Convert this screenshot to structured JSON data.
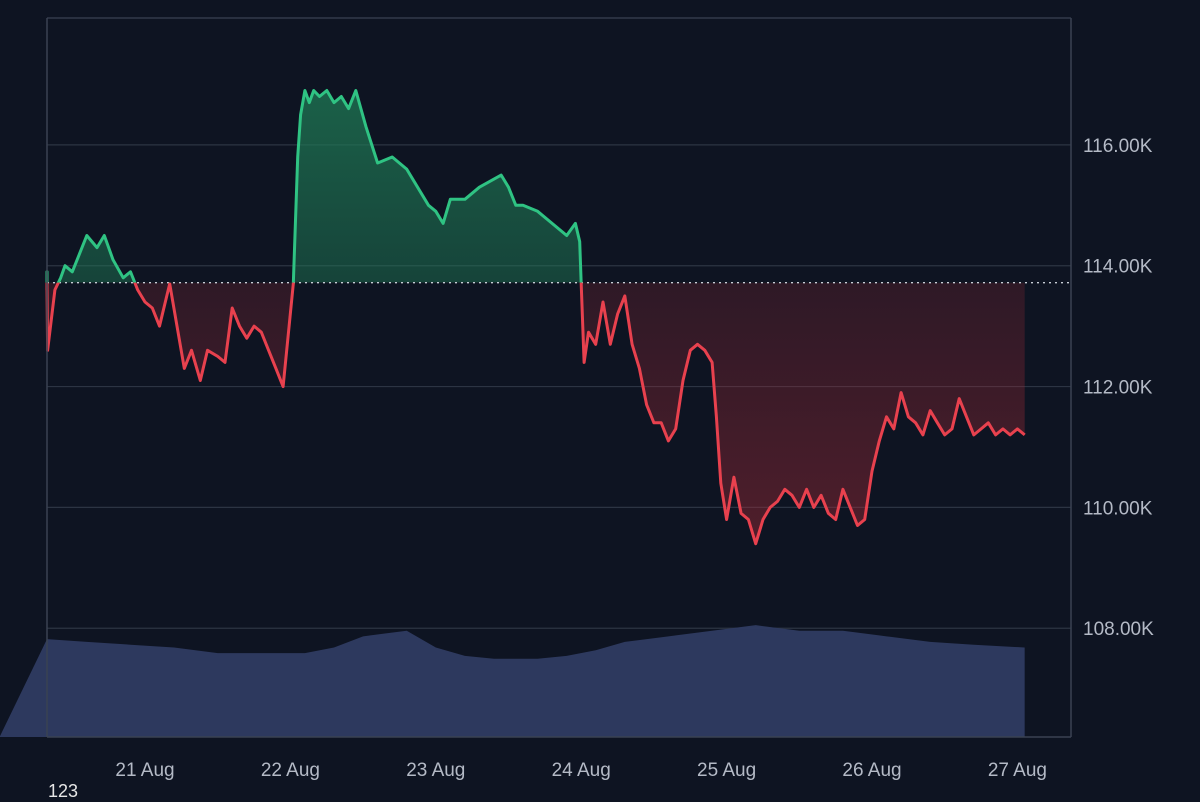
{
  "corner_label": "123",
  "colors": {
    "background": "#0e1422",
    "grid": "#2c3443",
    "axis": "#3a4252",
    "up": "#2fc383",
    "down": "#e8414e",
    "volume": "#2f3b62",
    "baseline": "#c8cdd6"
  },
  "chart_data": {
    "type": "area",
    "title": "",
    "xlabel": "",
    "ylabel": "",
    "x_ticks": [
      "21 Aug",
      "22 Aug",
      "23 Aug",
      "24 Aug",
      "25 Aug",
      "26 Aug",
      "27 Aug"
    ],
    "y_ticks": [
      "108.00K",
      "110.00K",
      "112.00K",
      "114.00K",
      "116.00K"
    ],
    "ylim": [
      106.2,
      118.1
    ],
    "xlim": [
      0,
      7.05
    ],
    "baseline": 113.72,
    "grid": true,
    "series": [
      {
        "x": [
          0,
          0.1,
          0.15,
          0.25,
          0.3,
          0.33,
          0.38,
          0.42,
          0.45,
          0.5,
          0.55,
          0.6,
          0.67,
          0.72,
          0.78,
          0.85,
          0.9,
          0.95,
          1.0,
          1.05,
          1.1,
          1.17,
          1.22,
          1.27,
          1.32,
          1.38,
          1.43,
          1.5,
          1.55,
          1.6,
          1.65,
          1.7,
          1.75,
          1.8,
          1.85,
          1.9,
          1.95,
          2.02,
          2.05,
          2.07,
          2.1,
          2.13,
          2.16,
          2.2,
          2.25,
          2.3,
          2.35,
          2.4,
          2.45,
          2.52,
          2.6,
          2.7,
          2.8,
          2.95,
          3.0,
          3.05,
          3.1,
          3.2,
          3.3,
          3.45,
          3.5,
          3.55,
          3.6,
          3.7,
          3.8,
          3.9,
          3.96,
          3.99,
          4.0,
          4.02,
          4.05,
          4.1,
          4.15,
          4.2,
          4.25,
          4.3,
          4.35,
          4.4,
          4.45,
          4.5,
          4.55,
          4.6,
          4.65,
          4.7,
          4.75,
          4.8,
          4.85,
          4.9,
          4.93,
          4.96,
          5.0,
          5.05,
          5.1,
          5.15,
          5.2,
          5.25,
          5.3,
          5.35,
          5.4,
          5.45,
          5.5,
          5.55,
          5.6,
          5.65,
          5.7,
          5.75,
          5.8,
          5.85,
          5.9,
          5.95,
          6.0,
          6.05,
          6.1,
          6.15,
          6.2,
          6.25,
          6.3,
          6.35,
          6.4,
          6.45,
          6.5,
          6.55,
          6.6,
          6.65,
          6.7,
          6.75,
          6.8,
          6.85,
          6.9,
          6.95,
          7.0,
          7.05
        ],
        "values": [
          113.7,
          113.8,
          113.6,
          113.9,
          113.7,
          112.6,
          113.6,
          113.8,
          114.0,
          113.9,
          114.2,
          114.5,
          114.3,
          114.5,
          114.1,
          113.8,
          113.9,
          113.6,
          113.4,
          113.3,
          113.0,
          113.7,
          113.0,
          112.3,
          112.6,
          112.1,
          112.6,
          112.5,
          112.4,
          113.3,
          113.0,
          112.8,
          113.0,
          112.9,
          112.6,
          112.3,
          112.0,
          113.7,
          115.8,
          116.5,
          116.9,
          116.7,
          116.9,
          116.8,
          116.9,
          116.7,
          116.8,
          116.6,
          116.9,
          116.3,
          115.7,
          115.8,
          115.6,
          115.0,
          114.9,
          114.7,
          115.1,
          115.1,
          115.3,
          115.5,
          115.3,
          115.0,
          115.0,
          114.9,
          114.7,
          114.5,
          114.7,
          114.4,
          113.7,
          112.4,
          112.9,
          112.7,
          113.4,
          112.7,
          113.2,
          113.5,
          112.7,
          112.3,
          111.7,
          111.4,
          111.4,
          111.1,
          111.3,
          112.1,
          112.6,
          112.7,
          112.6,
          112.4,
          111.5,
          110.4,
          109.8,
          110.5,
          109.9,
          109.8,
          109.4,
          109.8,
          110.0,
          110.1,
          110.3,
          110.2,
          110.0,
          110.3,
          110.0,
          110.2,
          109.9,
          109.8,
          110.3,
          110.0,
          109.7,
          109.8,
          110.6,
          111.1,
          111.5,
          111.3,
          111.9,
          111.5,
          111.4,
          111.2,
          111.6,
          111.4,
          111.2,
          111.3,
          111.8,
          111.5,
          111.2,
          111.3,
          111.4,
          111.2,
          111.3,
          111.2,
          111.3,
          111.2
        ]
      }
    ],
    "volume": {
      "x": [
        0,
        0.3,
        0.6,
        0.9,
        1.2,
        1.5,
        1.8,
        2.1,
        2.3,
        2.5,
        2.8,
        3.0,
        3.2,
        3.4,
        3.7,
        3.9,
        4.1,
        4.3,
        4.6,
        4.9,
        5.2,
        5.5,
        5.8,
        6.1,
        6.4,
        6.7,
        7.05
      ],
      "values": [
        0.35,
        0.35,
        0.34,
        0.33,
        0.32,
        0.3,
        0.3,
        0.3,
        0.32,
        0.36,
        0.38,
        0.32,
        0.29,
        0.28,
        0.28,
        0.29,
        0.31,
        0.34,
        0.36,
        0.38,
        0.4,
        0.38,
        0.38,
        0.36,
        0.34,
        0.33,
        0.32
      ]
    }
  }
}
